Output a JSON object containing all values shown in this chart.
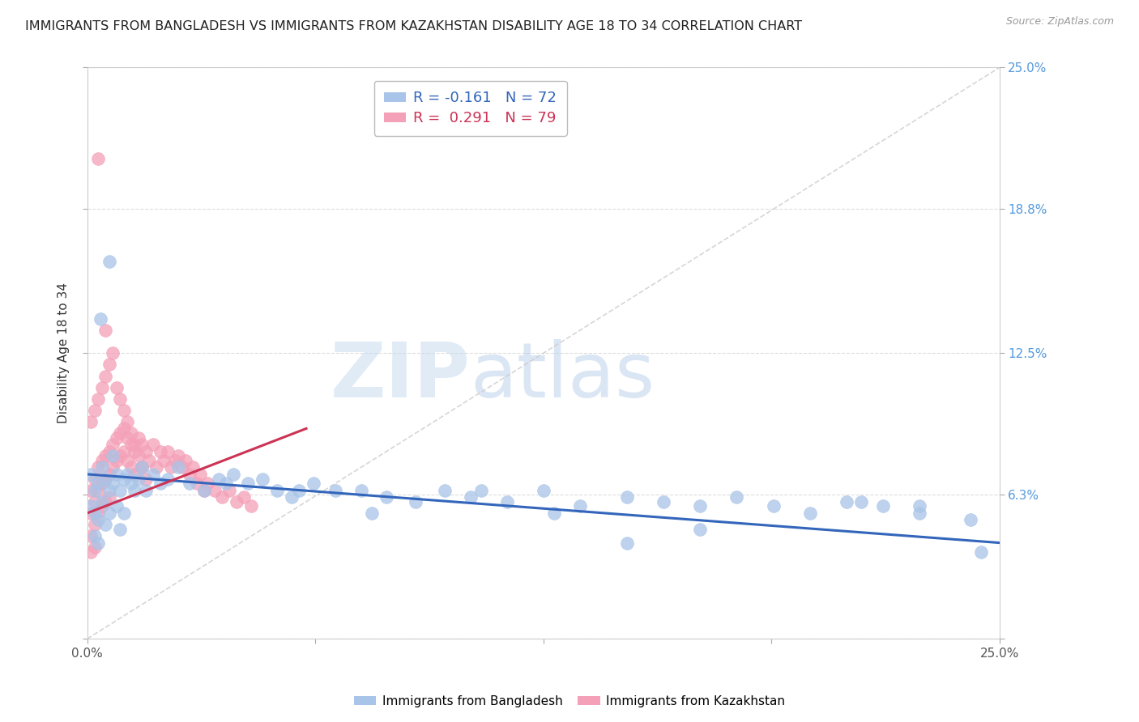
{
  "title": "IMMIGRANTS FROM BANGLADESH VS IMMIGRANTS FROM KAZAKHSTAN DISABILITY AGE 18 TO 34 CORRELATION CHART",
  "source": "Source: ZipAtlas.com",
  "ylabel": "Disability Age 18 to 34",
  "watermark_zip": "ZIP",
  "watermark_atlas": "atlas",
  "xmin": 0.0,
  "xmax": 0.25,
  "ymin": 0.0,
  "ymax": 0.25,
  "ytick_positions": [
    0.0,
    0.063,
    0.125,
    0.188,
    0.25
  ],
  "ytick_labels_right": [
    "",
    "6.3%",
    "12.5%",
    "18.8%",
    "25.0%"
  ],
  "xtick_positions": [
    0.0,
    0.0625,
    0.125,
    0.1875,
    0.25
  ],
  "xtick_labels": [
    "0.0%",
    "",
    "",
    "",
    "25.0%"
  ],
  "blue_R": -0.161,
  "blue_N": 72,
  "pink_R": 0.291,
  "pink_N": 79,
  "blue_color": "#A8C4E8",
  "pink_color": "#F4A0B8",
  "blue_label": "Immigrants from Bangladesh",
  "pink_label": "Immigrants from Kazakhstan",
  "blue_line_color": "#3366BB",
  "pink_line_color": "#CC3355",
  "title_fontsize": 11.5,
  "axis_label_fontsize": 11,
  "tick_fontsize": 11,
  "legend_fontsize": 13,
  "blue_trend_x0": 0.0,
  "blue_trend_y0": 0.072,
  "blue_trend_x1": 0.25,
  "blue_trend_y1": 0.042,
  "pink_trend_x0": 0.0,
  "pink_trend_y0": 0.055,
  "pink_trend_x1": 0.06,
  "pink_trend_y1": 0.092,
  "blue_scatter_x": [
    0.001,
    0.001,
    0.002,
    0.002,
    0.002,
    0.003,
    0.003,
    0.003,
    0.004,
    0.004,
    0.005,
    0.005,
    0.006,
    0.006,
    0.007,
    0.007,
    0.008,
    0.008,
    0.009,
    0.009,
    0.01,
    0.01,
    0.011,
    0.012,
    0.013,
    0.014,
    0.015,
    0.016,
    0.018,
    0.02,
    0.022,
    0.025,
    0.028,
    0.032,
    0.036,
    0.04,
    0.044,
    0.048,
    0.052,
    0.056,
    0.062,
    0.068,
    0.075,
    0.082,
    0.09,
    0.098,
    0.105,
    0.115,
    0.125,
    0.135,
    0.148,
    0.158,
    0.168,
    0.178,
    0.188,
    0.198,
    0.208,
    0.218,
    0.228,
    0.038,
    0.058,
    0.078,
    0.108,
    0.128,
    0.148,
    0.168,
    0.212,
    0.228,
    0.242,
    0.245,
    0.0035,
    0.006
  ],
  "blue_scatter_y": [
    0.072,
    0.058,
    0.065,
    0.055,
    0.045,
    0.068,
    0.052,
    0.042,
    0.075,
    0.06,
    0.07,
    0.05,
    0.065,
    0.055,
    0.068,
    0.08,
    0.072,
    0.058,
    0.065,
    0.048,
    0.07,
    0.055,
    0.072,
    0.068,
    0.065,
    0.07,
    0.075,
    0.065,
    0.072,
    0.068,
    0.07,
    0.075,
    0.068,
    0.065,
    0.07,
    0.072,
    0.068,
    0.07,
    0.065,
    0.062,
    0.068,
    0.065,
    0.065,
    0.062,
    0.06,
    0.065,
    0.062,
    0.06,
    0.065,
    0.058,
    0.062,
    0.06,
    0.058,
    0.062,
    0.058,
    0.055,
    0.06,
    0.058,
    0.055,
    0.068,
    0.065,
    0.055,
    0.065,
    0.055,
    0.042,
    0.048,
    0.06,
    0.058,
    0.052,
    0.038,
    0.14,
    0.165
  ],
  "pink_scatter_x": [
    0.001,
    0.001,
    0.001,
    0.001,
    0.002,
    0.002,
    0.002,
    0.002,
    0.003,
    0.003,
    0.003,
    0.004,
    0.004,
    0.004,
    0.005,
    0.005,
    0.005,
    0.006,
    0.006,
    0.006,
    0.007,
    0.007,
    0.008,
    0.008,
    0.009,
    0.009,
    0.01,
    0.01,
    0.011,
    0.011,
    0.012,
    0.012,
    0.013,
    0.013,
    0.014,
    0.015,
    0.015,
    0.016,
    0.017,
    0.018,
    0.019,
    0.02,
    0.021,
    0.022,
    0.023,
    0.024,
    0.025,
    0.026,
    0.027,
    0.028,
    0.029,
    0.03,
    0.031,
    0.032,
    0.033,
    0.035,
    0.037,
    0.039,
    0.041,
    0.043,
    0.045,
    0.001,
    0.002,
    0.003,
    0.004,
    0.005,
    0.006,
    0.007,
    0.008,
    0.009,
    0.01,
    0.011,
    0.012,
    0.013,
    0.014,
    0.015,
    0.016,
    0.003,
    0.005
  ],
  "pink_scatter_y": [
    0.065,
    0.055,
    0.045,
    0.038,
    0.07,
    0.06,
    0.05,
    0.04,
    0.075,
    0.065,
    0.055,
    0.078,
    0.068,
    0.058,
    0.08,
    0.07,
    0.06,
    0.082,
    0.072,
    0.062,
    0.085,
    0.075,
    0.088,
    0.078,
    0.09,
    0.08,
    0.092,
    0.082,
    0.088,
    0.078,
    0.085,
    0.075,
    0.082,
    0.072,
    0.088,
    0.085,
    0.075,
    0.082,
    0.078,
    0.085,
    0.075,
    0.082,
    0.078,
    0.082,
    0.075,
    0.078,
    0.08,
    0.075,
    0.078,
    0.072,
    0.075,
    0.068,
    0.072,
    0.065,
    0.068,
    0.065,
    0.062,
    0.065,
    0.06,
    0.062,
    0.058,
    0.095,
    0.1,
    0.105,
    0.11,
    0.115,
    0.12,
    0.125,
    0.11,
    0.105,
    0.1,
    0.095,
    0.09,
    0.085,
    0.08,
    0.075,
    0.07,
    0.21,
    0.135
  ]
}
